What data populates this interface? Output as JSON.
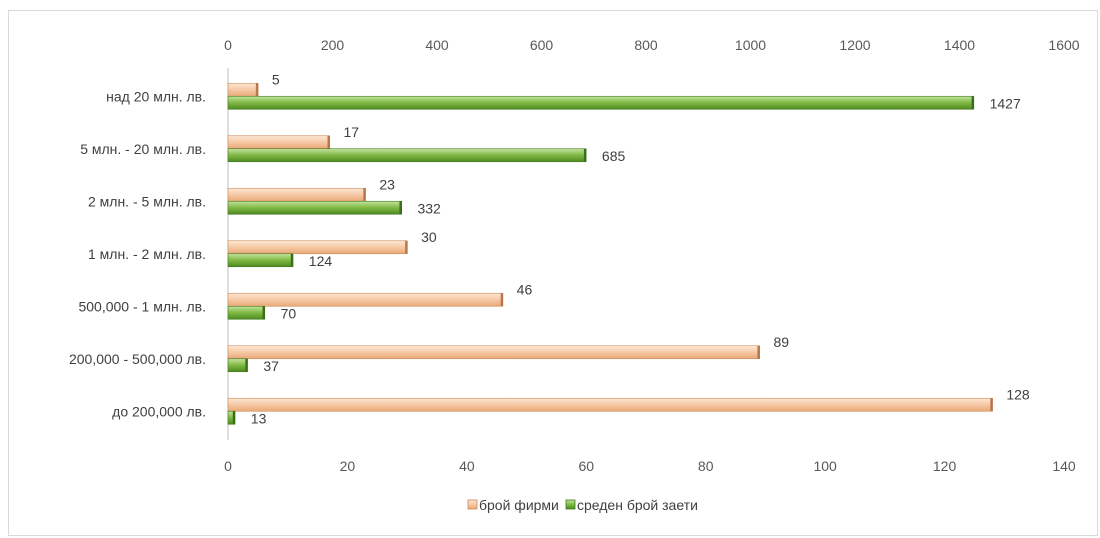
{
  "chart_data": {
    "type": "bar",
    "orientation": "horizontal",
    "categories": [
      "до 200,000 лв.",
      "200,000 - 500,000 лв.",
      "500,000 - 1 млн. лв.",
      "1 млн. - 2 млн. лв.",
      "2 млн. - 5 млн. лв.",
      "5 млн. - 20 млн. лв.",
      "над 20 млн. лв."
    ],
    "series": [
      {
        "name": "брой фирми",
        "axis": "bottom",
        "color": "#f6c9a4",
        "values": [
          128,
          89,
          46,
          30,
          23,
          17,
          5
        ]
      },
      {
        "name": "среден брой заети",
        "axis": "top",
        "color": "#8cc152",
        "values": [
          13,
          37,
          70,
          124,
          332,
          685,
          1427
        ]
      }
    ],
    "axes": {
      "top": {
        "min": 0,
        "max": 1600,
        "ticks": [
          "0",
          "200",
          "400",
          "600",
          "800",
          "1000",
          "1200",
          "1400",
          "1600"
        ]
      },
      "bottom": {
        "min": 0,
        "max": 140,
        "ticks": [
          "0",
          "20",
          "40",
          "60",
          "80",
          "100",
          "120",
          "140"
        ]
      }
    },
    "grid": false,
    "legend": "bottom"
  }
}
